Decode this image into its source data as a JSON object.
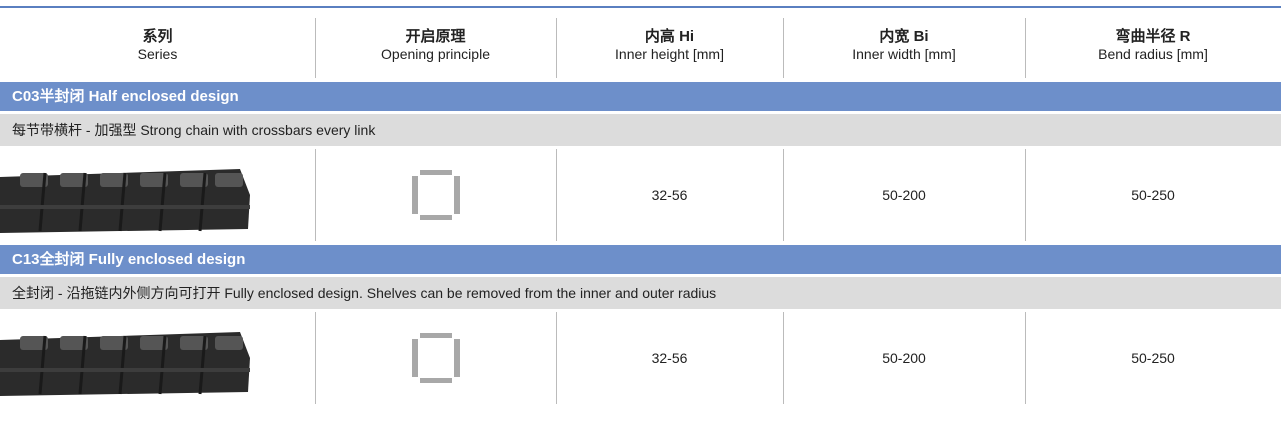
{
  "table": {
    "header": [
      {
        "cn": "系列",
        "en": "Series"
      },
      {
        "cn": "开启原理",
        "en": "Opening principle"
      },
      {
        "cn": "内高 Hi",
        "en": "Inner height [mm]"
      },
      {
        "cn": "内宽 Bi",
        "en": "Inner width [mm]"
      },
      {
        "cn": "弯曲半径 R",
        "en": "Bend radius [mm]"
      }
    ],
    "sections": [
      {
        "title": "C03半封闭 Half enclosed design",
        "subtitle": "每节带横杆 - 加强型 Strong chain with crossbars every link",
        "row": [
          "32-56",
          "50-200",
          "50-250"
        ]
      },
      {
        "title": "C13全封闭 Fully enclosed design",
        "subtitle": "全封闭 - 沿拖链内外侧方向可打开 Fully enclosed design. Shelves can be removed from the inner and outer radius",
        "row": [
          "32-56",
          "50-200",
          "50-250"
        ]
      }
    ]
  }
}
